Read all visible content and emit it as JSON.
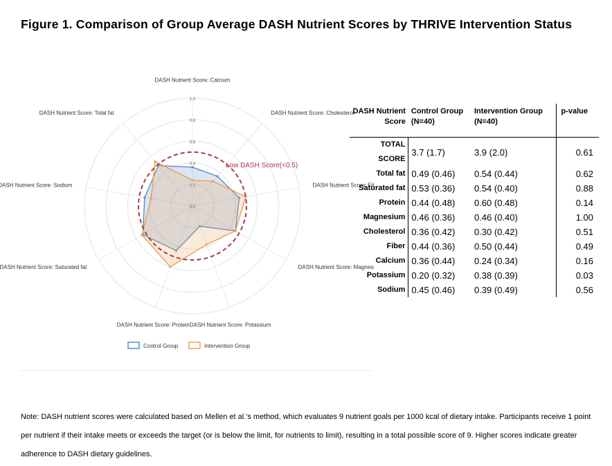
{
  "figure": {
    "title": "Figure 1. Comparison of Group Average DASH Nutrient Scores by THRIVE Intervention Status"
  },
  "chart_data": {
    "type": "radar",
    "axes": [
      "DASH Nutrient Score: Calcium",
      "DASH Nutrient Score: Cholesterol",
      "DASH Nutrient Score: Fiber",
      "DASH Nutrient Score: Magnesium",
      "DASH Nutrient Score: Potassium",
      "DASH Nutrient Score: Protein",
      "DASH Nutrient Score: Saturated fat",
      "DASH Nutrient Score: Sodium",
      "DASH Nutrient Score: Total fat"
    ],
    "ticks": [
      "0.0",
      "0.2",
      "0.4",
      "0.6",
      "0.8",
      "1.0"
    ],
    "range": [
      0,
      1
    ],
    "threshold": {
      "value": 0.5,
      "label": "Low DASH Score(<0.5)",
      "color": "#a33a4a"
    },
    "series": [
      {
        "name": "Control Group",
        "color": "#5b8cc8",
        "values": [
          0.36,
          0.36,
          0.44,
          0.46,
          0.2,
          0.44,
          0.53,
          0.45,
          0.49
        ]
      },
      {
        "name": "Intervention Group",
        "color": "#e8a055",
        "values": [
          0.24,
          0.3,
          0.5,
          0.46,
          0.38,
          0.6,
          0.54,
          0.39,
          0.54
        ]
      }
    ],
    "legend_position": "bottom"
  },
  "table": {
    "headers": {
      "nutrient": "DASH Nutrient Score",
      "control": "Control Group (N=40)",
      "intervention": "Intervention Group (N=40)",
      "p": "p-value"
    },
    "rows": [
      {
        "name": "TOTAL SCORE",
        "control": "3.7 (1.7)",
        "intervention": "3.9 (2.0)",
        "p": "0.61"
      },
      {
        "name": "Total fat",
        "control": "0.49 (0.46)",
        "intervention": "0.54 (0.44)",
        "p": "0.62"
      },
      {
        "name": "Saturated fat",
        "control": "0.53 (0.36)",
        "intervention": "0.54 (0.40)",
        "p": "0.88"
      },
      {
        "name": "Protein",
        "control": "0.44 (0.48)",
        "intervention": "0.60 (0.48)",
        "p": "0.14"
      },
      {
        "name": "Magnesium",
        "control": "0.46 (0.36)",
        "intervention": "0.46 (0.40)",
        "p": "1.00"
      },
      {
        "name": "Cholesterol",
        "control": "0.36 (0.42)",
        "intervention": "0.30 (0.42)",
        "p": "0.51"
      },
      {
        "name": "Fiber",
        "control": "0.44 (0.36)",
        "intervention": "0.50 (0.44)",
        "p": "0.49"
      },
      {
        "name": "Calcium",
        "control": "0.36 (0.44)",
        "intervention": "0.24 (0.34)",
        "p": "0.16"
      },
      {
        "name": "Potassium",
        "control": "0.20 (0.32)",
        "intervention": "0.38 (0.39)",
        "p": "0.03"
      },
      {
        "name": "Sodium",
        "control": "0.45 (0.46)",
        "intervention": "0.39 (0.49)",
        "p": "0.56"
      }
    ]
  },
  "note": {
    "text": "Note: DASH nutrient scores were calculated based on Mellen et al.'s method, which evaluates 9 nutrient goals per 1000 kcal of dietary intake. Participants receive 1 point per nutrient if their intake meets or exceeds the target (or is below the limit, for nutrients to limit), resulting in a total possible score of 9. Higher scores indicate greater adherence to DASH dietary guidelines."
  }
}
